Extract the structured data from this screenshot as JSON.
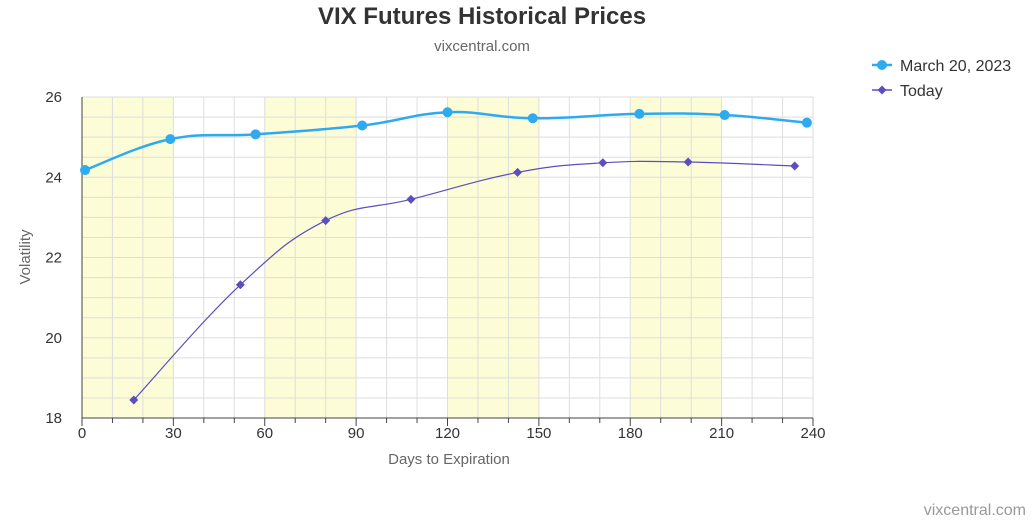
{
  "chart_data": {
    "type": "line",
    "title": "VIX Futures Historical Prices",
    "subtitle": "vixcentral.com",
    "xlabel": "Days to Expiration",
    "ylabel": "Volatility",
    "xlim": [
      0,
      240
    ],
    "ylim": [
      18,
      26
    ],
    "x_ticks": [
      "0",
      "30",
      "60",
      "90",
      "120",
      "150",
      "180",
      "210",
      "240"
    ],
    "y_ticks": [
      "18",
      "20",
      "22",
      "24",
      "26"
    ],
    "x_bands": [
      [
        0,
        30
      ],
      [
        60,
        90
      ],
      [
        120,
        150
      ],
      [
        180,
        210
      ]
    ],
    "band_color": "#fcfcd6",
    "grid": true,
    "legend_position": "top-right",
    "series": [
      {
        "name": "March 20, 2023",
        "color": "#2eaaf0",
        "marker": "circle",
        "x": [
          1,
          29,
          57,
          92,
          120,
          148,
          183,
          211,
          238
        ],
        "y": [
          24.18,
          24.95,
          25.07,
          25.29,
          25.62,
          25.47,
          25.58,
          25.55,
          25.36
        ]
      },
      {
        "name": "Today",
        "color": "#5b4fbe",
        "marker": "diamond",
        "x": [
          17,
          52,
          80,
          108,
          143,
          171,
          199,
          234
        ],
        "y": [
          18.45,
          21.32,
          22.92,
          23.45,
          24.12,
          24.36,
          24.38,
          24.28
        ]
      }
    ]
  },
  "credit": "vixcentral.com"
}
